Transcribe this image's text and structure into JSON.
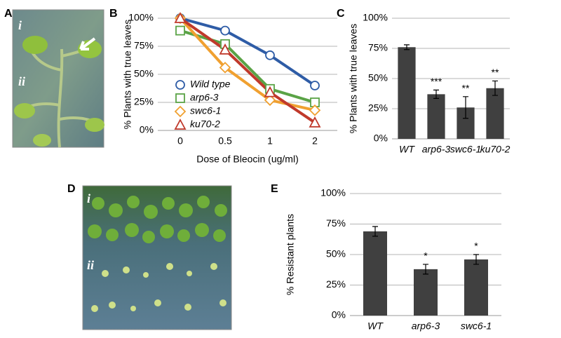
{
  "photos": [
    {
      "label": "A",
      "insets": [
        "i",
        "ii"
      ]
    },
    {
      "label": "D",
      "insets": [
        "i",
        "ii"
      ]
    }
  ],
  "chart_data": [
    {
      "type": "line",
      "label": "B",
      "ylabel": "% Plants with true leaves",
      "xlabel": "Dose of Bleocin (ug/ml)",
      "categories": [
        "0",
        "0.5",
        "1",
        "2"
      ],
      "series": [
        {
          "name": "Wild type",
          "color": "#2e5ca6",
          "marker": "circle",
          "values": [
            100,
            89,
            67,
            40
          ]
        },
        {
          "name": "arp6-3",
          "color": "#5aa346",
          "marker": "square",
          "values": [
            89,
            77,
            37,
            25
          ]
        },
        {
          "name": "swc6-1",
          "color": "#f0a030",
          "marker": "diamond",
          "values": [
            100,
            56,
            27,
            18
          ]
        },
        {
          "name": "ku70-2",
          "color": "#c0392b",
          "marker": "triangle",
          "values": [
            100,
            72,
            34,
            7
          ]
        }
      ],
      "ylim": [
        0,
        100
      ],
      "yticks": [
        {
          "value": 0,
          "label": "0%"
        },
        {
          "value": 25,
          "label": "25%"
        },
        {
          "value": 50,
          "label": "50%"
        },
        {
          "value": 75,
          "label": "75%"
        },
        {
          "value": 100,
          "label": "100%"
        }
      ],
      "grid": true,
      "legend": "lower-left"
    },
    {
      "type": "bar",
      "label": "C",
      "ylabel": "% Plants with true leaves",
      "categories": [
        "WT",
        "arp6-3",
        "swc6-1",
        "ku70-2"
      ],
      "values": [
        76,
        37,
        26,
        42
      ],
      "errors": [
        2,
        3.5,
        9,
        6
      ],
      "annotations": [
        null,
        "***",
        "**",
        "**"
      ],
      "color": "#404040",
      "ylim": [
        0,
        100
      ],
      "yticks": [
        {
          "value": 0,
          "label": "0%"
        },
        {
          "value": 25,
          "label": "25%"
        },
        {
          "value": 50,
          "label": "50%"
        },
        {
          "value": 75,
          "label": "75%"
        },
        {
          "value": 100,
          "label": "100%"
        }
      ],
      "grid": true
    },
    {
      "type": "bar",
      "label": "E",
      "ylabel": "% Resistant plants",
      "categories": [
        "WT",
        "arp6-3",
        "swc6-1"
      ],
      "values": [
        69,
        38,
        46
      ],
      "errors": [
        4,
        4,
        4
      ],
      "annotations": [
        null,
        "*",
        "*"
      ],
      "color": "#404040",
      "ylim": [
        0,
        100
      ],
      "yticks": [
        {
          "value": 0,
          "label": "0%"
        },
        {
          "value": 25,
          "label": "25%"
        },
        {
          "value": 50,
          "label": "50%"
        },
        {
          "value": 75,
          "label": "75%"
        },
        {
          "value": 100,
          "label": "100%"
        }
      ],
      "grid": true
    }
  ]
}
